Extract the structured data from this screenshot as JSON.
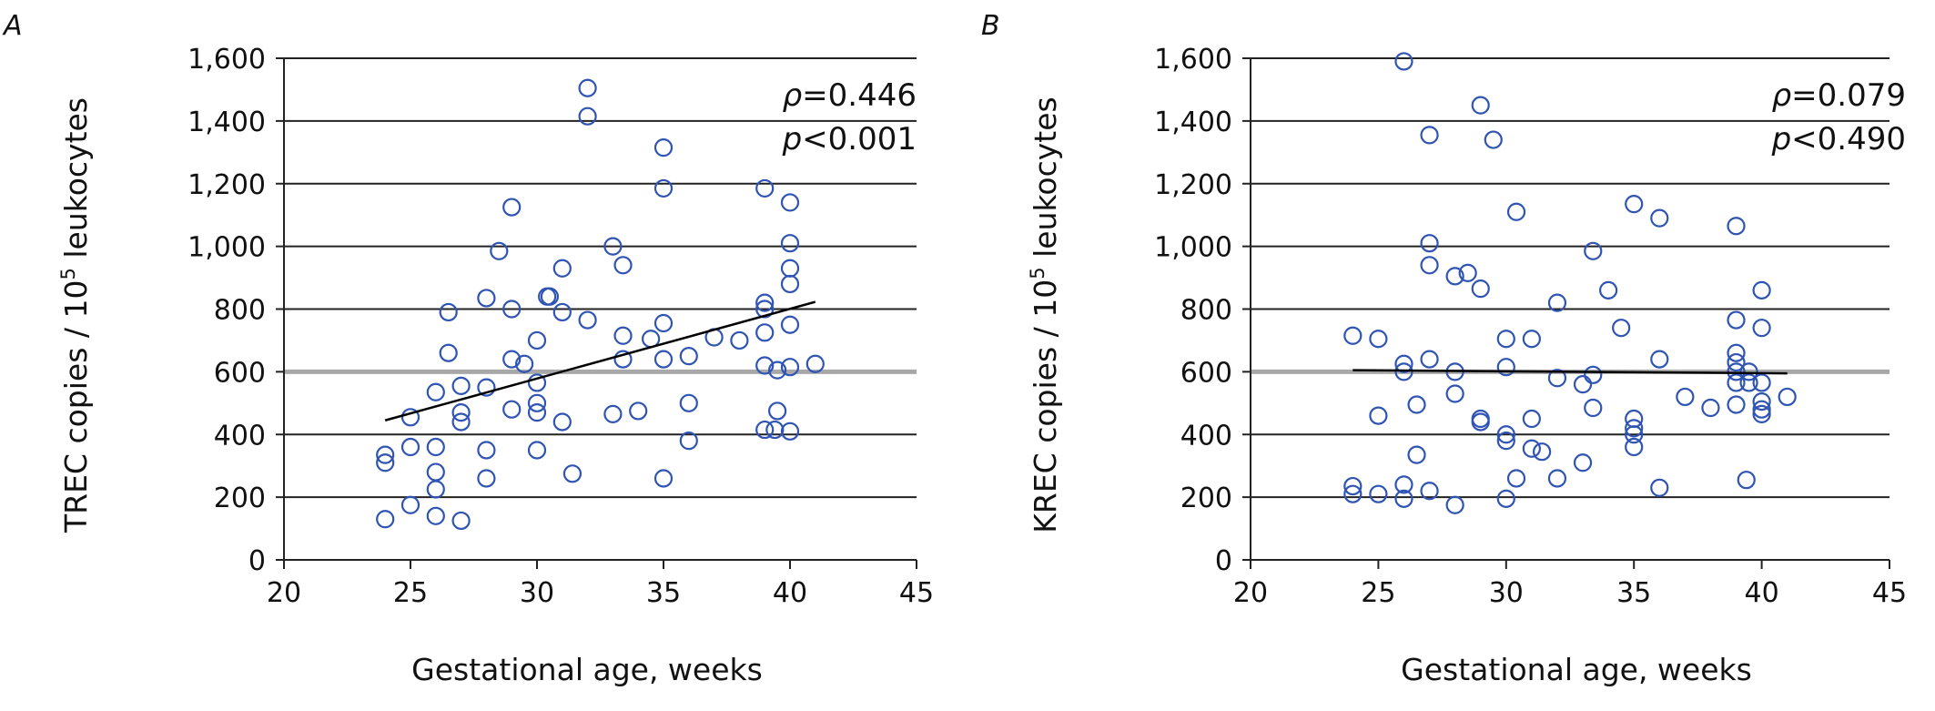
{
  "figure": {
    "panels": [
      {
        "label": "A"
      },
      {
        "label": "B"
      }
    ]
  },
  "chart_data": [
    {
      "type": "scatter",
      "panel": "A",
      "xlabel": "Gestational age, weeks",
      "ylabel_main": "TREC copies / 10",
      "ylabel_sup": "5",
      "ylabel_tail": " leukocytes",
      "xlim": [
        20,
        45
      ],
      "ylim": [
        0,
        1600
      ],
      "xticks": [
        20,
        25,
        30,
        35,
        40,
        45
      ],
      "yticks": [
        0,
        200,
        400,
        600,
        800,
        1000,
        1200,
        1400,
        1600
      ],
      "ytick_labels": [
        "0",
        "200",
        "400",
        "600",
        "800",
        "1,000",
        "1,200",
        "1,400",
        "1,600"
      ],
      "grid": "horizontal",
      "marker": "open-circle",
      "marker_color": "#2f54b4",
      "annotation": {
        "rho_symbol": "ρ",
        "rho_value": "=0.446",
        "p_symbol": "p",
        "p_value": "<0.001"
      },
      "trendline": {
        "x": [
          24,
          41
        ],
        "y": [
          445,
          823
        ]
      },
      "points": [
        [
          24,
          130
        ],
        [
          24,
          310
        ],
        [
          24,
          335
        ],
        [
          25,
          175
        ],
        [
          25,
          360
        ],
        [
          25,
          455
        ],
        [
          26,
          140
        ],
        [
          26,
          225
        ],
        [
          26,
          280
        ],
        [
          26,
          360
        ],
        [
          26,
          535
        ],
        [
          26.5,
          660
        ],
        [
          26.5,
          790
        ],
        [
          27,
          125
        ],
        [
          27,
          440
        ],
        [
          27,
          470
        ],
        [
          27,
          555
        ],
        [
          28,
          260
        ],
        [
          28,
          350
        ],
        [
          28,
          550
        ],
        [
          28,
          835
        ],
        [
          28.5,
          985
        ],
        [
          29,
          480
        ],
        [
          29,
          640
        ],
        [
          29,
          800
        ],
        [
          29,
          1125
        ],
        [
          29.5,
          625
        ],
        [
          30,
          350
        ],
        [
          30,
          470
        ],
        [
          30,
          500
        ],
        [
          30,
          565
        ],
        [
          30,
          700
        ],
        [
          30.4,
          840
        ],
        [
          30.5,
          840
        ],
        [
          31,
          440
        ],
        [
          31,
          790
        ],
        [
          31,
          930
        ],
        [
          31.4,
          275
        ],
        [
          32,
          765
        ],
        [
          32,
          1415
        ],
        [
          32,
          1505
        ],
        [
          33,
          465
        ],
        [
          33,
          1000
        ],
        [
          33.4,
          640
        ],
        [
          33.4,
          715
        ],
        [
          33.4,
          940
        ],
        [
          34,
          475
        ],
        [
          34.5,
          705
        ],
        [
          35,
          260
        ],
        [
          35,
          640
        ],
        [
          35,
          755
        ],
        [
          35,
          1185
        ],
        [
          35,
          1315
        ],
        [
          36,
          380
        ],
        [
          36,
          500
        ],
        [
          36,
          650
        ],
        [
          37,
          710
        ],
        [
          38,
          700
        ],
        [
          39,
          415
        ],
        [
          39,
          620
        ],
        [
          39,
          725
        ],
        [
          39,
          800
        ],
        [
          39,
          820
        ],
        [
          39,
          1185
        ],
        [
          39.4,
          415
        ],
        [
          39.5,
          475
        ],
        [
          39.5,
          605
        ],
        [
          40,
          410
        ],
        [
          40,
          615
        ],
        [
          40,
          750
        ],
        [
          40,
          880
        ],
        [
          40,
          930
        ],
        [
          40,
          1010
        ],
        [
          40,
          1140
        ],
        [
          41,
          625
        ]
      ]
    },
    {
      "type": "scatter",
      "panel": "B",
      "xlabel": "Gestational age, weeks",
      "ylabel_main": "KREC copies / 10",
      "ylabel_sup": "5",
      "ylabel_tail": " leukocytes",
      "xlim": [
        20,
        45
      ],
      "ylim": [
        0,
        1600
      ],
      "xticks": [
        20,
        25,
        30,
        35,
        40,
        45
      ],
      "yticks": [
        0,
        200,
        400,
        600,
        800,
        1000,
        1200,
        1400,
        1600
      ],
      "ytick_labels": [
        "0",
        "200",
        "400",
        "600",
        "800",
        "1,000",
        "1,200",
        "1,400",
        "1,600"
      ],
      "grid": "horizontal",
      "marker": "open-circle",
      "marker_color": "#2f54b4",
      "annotation": {
        "rho_symbol": "ρ",
        "rho_value": "=0.079",
        "p_symbol": "p",
        "p_value": "<0.490"
      },
      "trendline": {
        "x": [
          24,
          41
        ],
        "y": [
          605,
          595
        ]
      },
      "points": [
        [
          24,
          210
        ],
        [
          24,
          235
        ],
        [
          24,
          715
        ],
        [
          25,
          210
        ],
        [
          25,
          460
        ],
        [
          25,
          705
        ],
        [
          26,
          195
        ],
        [
          26,
          240
        ],
        [
          26,
          600
        ],
        [
          26,
          625
        ],
        [
          26,
          1590
        ],
        [
          26.5,
          335
        ],
        [
          26.5,
          495
        ],
        [
          27,
          220
        ],
        [
          27,
          640
        ],
        [
          27,
          940
        ],
        [
          27,
          1010
        ],
        [
          27,
          1355
        ],
        [
          28,
          175
        ],
        [
          28,
          530
        ],
        [
          28,
          600
        ],
        [
          28,
          905
        ],
        [
          28.5,
          915
        ],
        [
          29,
          440
        ],
        [
          29,
          450
        ],
        [
          29,
          865
        ],
        [
          29,
          1450
        ],
        [
          29.5,
          1340
        ],
        [
          30,
          195
        ],
        [
          30,
          380
        ],
        [
          30,
          400
        ],
        [
          30,
          615
        ],
        [
          30,
          705
        ],
        [
          30.4,
          260
        ],
        [
          30.4,
          1110
        ],
        [
          31,
          355
        ],
        [
          31,
          450
        ],
        [
          31,
          705
        ],
        [
          31.4,
          345
        ],
        [
          32,
          260
        ],
        [
          32,
          580
        ],
        [
          32,
          820
        ],
        [
          33,
          310
        ],
        [
          33,
          560
        ],
        [
          33.4,
          485
        ],
        [
          33.4,
          590
        ],
        [
          33.4,
          985
        ],
        [
          34,
          860
        ],
        [
          34.5,
          740
        ],
        [
          35,
          360
        ],
        [
          35,
          400
        ],
        [
          35,
          420
        ],
        [
          35,
          450
        ],
        [
          35,
          1135
        ],
        [
          36,
          230
        ],
        [
          36,
          640
        ],
        [
          36,
          1090
        ],
        [
          37,
          520
        ],
        [
          38,
          485
        ],
        [
          39,
          495
        ],
        [
          39,
          565
        ],
        [
          39,
          600
        ],
        [
          39,
          630
        ],
        [
          39,
          660
        ],
        [
          39,
          765
        ],
        [
          39,
          1065
        ],
        [
          39.4,
          255
        ],
        [
          39.5,
          565
        ],
        [
          39.5,
          600
        ],
        [
          40,
          465
        ],
        [
          40,
          480
        ],
        [
          40,
          505
        ],
        [
          40,
          565
        ],
        [
          40,
          740
        ],
        [
          40,
          860
        ],
        [
          41,
          520
        ]
      ]
    }
  ]
}
